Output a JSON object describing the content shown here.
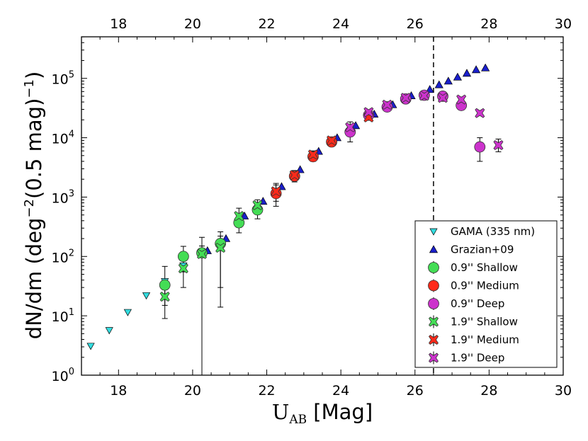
{
  "chart_data": {
    "type": "scatter",
    "xlabel": "U",
    "xlabel_sub": "AB",
    "xlabel_suffix": " [Mag]",
    "ylabel": "dN/dm (deg",
    "ylabel_exp1": "−2",
    "ylabel_mid": "(0.5 mag)",
    "ylabel_exp2": "−1",
    "ylabel_end": ")",
    "xlim": [
      17,
      30
    ],
    "ylim_log10": [
      0,
      5.7
    ],
    "x_ticks": [
      "18",
      "20",
      "22",
      "24",
      "26",
      "28",
      "30"
    ],
    "x_tick_values": [
      18,
      20,
      22,
      24,
      26,
      28,
      30
    ],
    "y_ticks": [
      {
        "base": "10",
        "exp": "0",
        "log": 0
      },
      {
        "base": "10",
        "exp": "1",
        "log": 1
      },
      {
        "base": "10",
        "exp": "2",
        "log": 2
      },
      {
        "base": "10",
        "exp": "3",
        "log": 3
      },
      {
        "base": "10",
        "exp": "4",
        "log": 4
      },
      {
        "base": "10",
        "exp": "5",
        "log": 5
      }
    ],
    "vline_x": 26.5,
    "series": [
      {
        "name": "GAMA (335 nm)",
        "marker": "triangle-down",
        "color": "#33dde0",
        "points": [
          [
            17.25,
            3.1
          ],
          [
            17.75,
            5.7
          ],
          [
            18.25,
            11.5
          ],
          [
            18.75,
            22
          ],
          [
            19.25,
            38
          ],
          [
            19.75,
            70
          ],
          [
            20.25,
            112
          ]
        ]
      },
      {
        "name": "Grazian+09",
        "marker": "triangle-up",
        "color": "#1a1fcc",
        "points": [
          [
            20.4,
            125
          ],
          [
            20.9,
            200
          ],
          [
            21.4,
            480
          ],
          [
            21.9,
            850
          ],
          [
            22.4,
            1500
          ],
          [
            22.9,
            2900
          ],
          [
            23.4,
            5900
          ],
          [
            23.9,
            10000
          ],
          [
            24.4,
            16000
          ],
          [
            24.9,
            25000
          ],
          [
            25.4,
            36000
          ],
          [
            25.9,
            51000
          ],
          [
            26.4,
            65000
          ],
          [
            26.65,
            78000
          ],
          [
            26.9,
            90000
          ],
          [
            27.15,
            105000
          ],
          [
            27.4,
            122000
          ],
          [
            27.65,
            140000
          ],
          [
            27.9,
            150000
          ]
        ]
      },
      {
        "name": "0.9'' Shallow",
        "marker": "circle",
        "color": "#44dd55",
        "points": [
          [
            19.25,
            33,
            15,
            68
          ],
          [
            19.75,
            100,
            55,
            148
          ],
          [
            20.25,
            115,
            1,
            150
          ],
          [
            20.75,
            165,
            14,
            260
          ],
          [
            21.25,
            370,
            250,
            490
          ],
          [
            21.75,
            610,
            430,
            760
          ]
        ]
      },
      {
        "name": "0.9'' Medium",
        "marker": "circle",
        "color": "#ff2a1a",
        "points": [
          [
            22.25,
            1150,
            700,
            1600
          ],
          [
            22.75,
            2250,
            1800,
            2700
          ],
          [
            23.25,
            4800,
            4000,
            5600
          ],
          [
            23.75,
            8500,
            7200,
            9800
          ]
        ]
      },
      {
        "name": "0.9'' Deep",
        "marker": "circle",
        "color": "#cc33cc",
        "points": [
          [
            24.25,
            12500,
            8500,
            16500
          ],
          [
            24.75,
            24000,
            22000,
            26000
          ],
          [
            25.25,
            33000,
            29000,
            37000
          ],
          [
            25.75,
            45000,
            42000,
            48000
          ],
          [
            26.25,
            52000,
            48000,
            56000
          ],
          [
            26.75,
            50000,
            46000,
            54000
          ],
          [
            27.25,
            35000,
            30000,
            40000
          ],
          [
            27.75,
            7000,
            4000,
            10000
          ]
        ]
      },
      {
        "name": "1.9'' Shallow",
        "marker": "x",
        "color": "#44dd55",
        "points": [
          [
            19.25,
            21,
            9,
            40
          ],
          [
            19.75,
            63,
            30,
            100
          ],
          [
            20.25,
            110,
            1,
            210
          ],
          [
            20.75,
            140,
            30,
            220
          ],
          [
            21.25,
            480,
            330,
            650
          ],
          [
            21.75,
            730,
            560,
            900
          ]
        ]
      },
      {
        "name": "1.9'' Medium",
        "marker": "x",
        "color": "#ff2a1a",
        "points": [
          [
            22.25,
            1250,
            850,
            1700
          ],
          [
            22.75,
            2350,
            1900,
            2800
          ],
          [
            23.25,
            5200,
            4400,
            6000
          ],
          [
            23.75,
            9000,
            7700,
            10300
          ],
          [
            24.75,
            22000,
            20000,
            24000
          ]
        ]
      },
      {
        "name": "1.9'' Deep",
        "marker": "x",
        "color": "#cc33cc",
        "points": [
          [
            24.25,
            15000,
            11000,
            18500
          ],
          [
            24.75,
            27000,
            25000,
            29000
          ],
          [
            25.25,
            36000,
            33000,
            39000
          ],
          [
            25.75,
            47000,
            44000,
            50000
          ],
          [
            26.25,
            51000,
            48000,
            54000
          ],
          [
            26.75,
            47000,
            44000,
            50000
          ],
          [
            27.25,
            44000,
            40000,
            48000
          ],
          [
            27.75,
            26000,
            24000,
            28000
          ],
          [
            28.25,
            7500,
            5800,
            9500
          ]
        ]
      }
    ]
  }
}
